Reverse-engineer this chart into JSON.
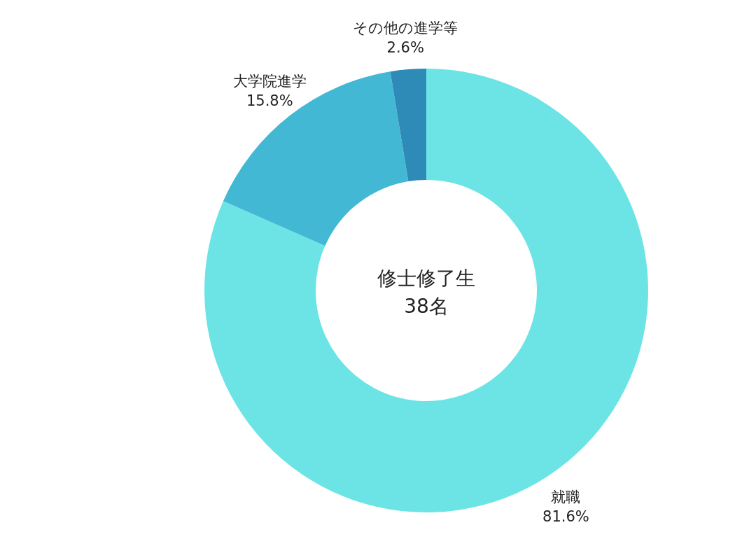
{
  "chart_data": {
    "type": "donut",
    "title": "修士修了生",
    "subtitle": "38名",
    "categories": [
      "就職",
      "大学院進学",
      "その他の進学等"
    ],
    "values": [
      81.6,
      15.8,
      2.6
    ],
    "colors": [
      "#6ce4e6",
      "#43b8d4",
      "#2e8bb8"
    ],
    "value_labels": [
      "81.6%",
      "15.8%",
      "2.6%"
    ],
    "legend": false
  }
}
